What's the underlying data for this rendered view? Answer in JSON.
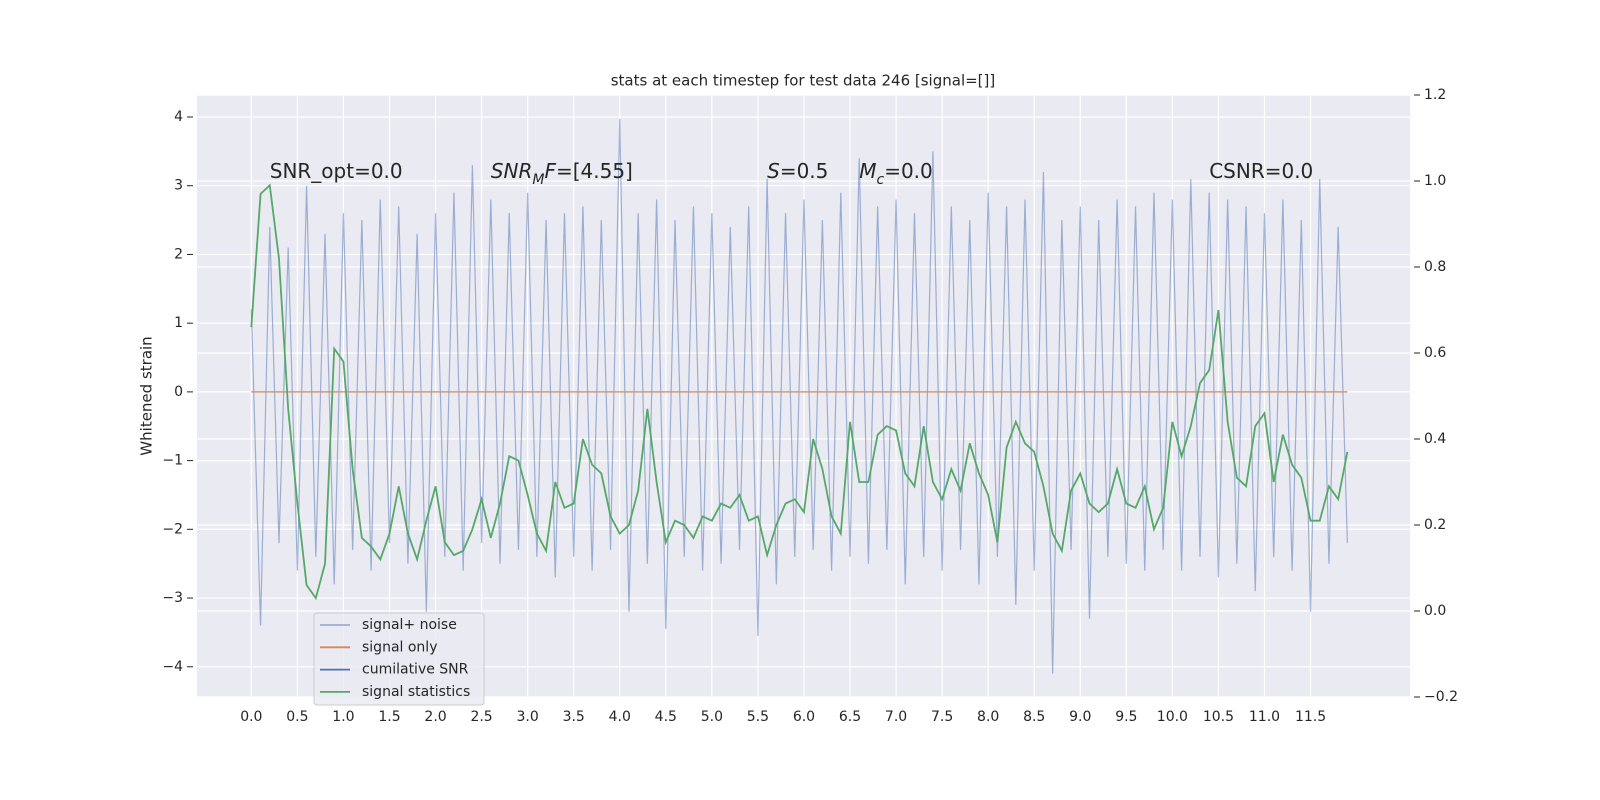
{
  "chart_data": {
    "type": "line",
    "title": "stats at each timestep for test data 246 [signal=[]]",
    "ylabel": "Whitened strain",
    "x": [
      0.0,
      0.1,
      0.2,
      0.3,
      0.4,
      0.5,
      0.6,
      0.7,
      0.8,
      0.9,
      1.0,
      1.1,
      1.2,
      1.3,
      1.4,
      1.5,
      1.6,
      1.7,
      1.8,
      1.9,
      2.0,
      2.1,
      2.2,
      2.3,
      2.4,
      2.5,
      2.6,
      2.7,
      2.8,
      2.9,
      3.0,
      3.1,
      3.2,
      3.3,
      3.4,
      3.5,
      3.6,
      3.7,
      3.8,
      3.9,
      4.0,
      4.1,
      4.2,
      4.3,
      4.4,
      4.5,
      4.6,
      4.7,
      4.8,
      4.9,
      5.0,
      5.1,
      5.2,
      5.3,
      5.4,
      5.5,
      5.6,
      5.7,
      5.8,
      5.9,
      6.0,
      6.1,
      6.2,
      6.3,
      6.4,
      6.5,
      6.6,
      6.7,
      6.8,
      6.9,
      7.0,
      7.1,
      7.2,
      7.3,
      7.4,
      7.5,
      7.6,
      7.7,
      7.8,
      7.9,
      8.0,
      8.1,
      8.2,
      8.3,
      8.4,
      8.5,
      8.6,
      8.7,
      8.8,
      8.9,
      9.0,
      9.1,
      9.2,
      9.3,
      9.4,
      9.5,
      9.6,
      9.7,
      9.8,
      9.9,
      10.0,
      10.1,
      10.2,
      10.3,
      10.4,
      10.5,
      10.6,
      10.7,
      10.8,
      10.9,
      11.0,
      11.1,
      11.2,
      11.3,
      11.4,
      11.5,
      11.6,
      11.7,
      11.8,
      11.9
    ],
    "series": [
      {
        "name": "signal+ noise",
        "color": "#4c72b0",
        "opacity": 0.5,
        "values": [
          1.2,
          -3.4,
          2.4,
          -2.2,
          2.1,
          -2.6,
          3.0,
          -2.4,
          2.3,
          -2.8,
          2.6,
          -2.3,
          2.5,
          -2.6,
          2.8,
          -2.2,
          2.7,
          -2.5,
          2.3,
          -3.2,
          2.6,
          -2.4,
          2.9,
          -2.6,
          3.3,
          -2.2,
          2.8,
          -2.5,
          2.6,
          -2.3,
          2.9,
          -2.4,
          2.5,
          -2.7,
          2.6,
          -2.4,
          2.7,
          -2.6,
          2.5,
          -2.3,
          3.97,
          -3.2,
          2.6,
          -2.5,
          2.8,
          -3.45,
          2.5,
          -2.4,
          2.7,
          -2.6,
          2.6,
          -2.5,
          2.4,
          -2.3,
          2.7,
          -3.55,
          3.1,
          -2.8,
          2.6,
          -2.4,
          2.8,
          -2.3,
          2.5,
          -2.6,
          2.9,
          -2.4,
          3.4,
          -2.5,
          2.7,
          -2.3,
          2.8,
          -2.8,
          2.6,
          -2.4,
          3.5,
          -2.6,
          2.7,
          -2.3,
          2.5,
          -2.8,
          2.9,
          -2.4,
          2.7,
          -3.1,
          2.8,
          -2.6,
          3.2,
          -4.1,
          2.5,
          -2.3,
          2.7,
          -3.3,
          2.5,
          -2.4,
          2.8,
          -2.5,
          2.7,
          -2.6,
          2.9,
          -2.3,
          2.8,
          -2.6,
          3.1,
          -2.4,
          2.9,
          -2.7,
          2.8,
          -2.5,
          2.7,
          -2.9,
          2.6,
          -2.4,
          2.8,
          -2.6,
          2.5,
          -3.2,
          3.1,
          -2.5,
          2.4,
          -2.2
        ]
      },
      {
        "name": "signal only",
        "color": "#dd8452",
        "x": [
          0.0,
          11.9
        ],
        "values": [
          0,
          0
        ]
      },
      {
        "name": "cumilative SNR",
        "color": "#4c72b0"
      },
      {
        "name": "signal statistics",
        "color": "#55a868",
        "axis": "y2",
        "values": [
          0.66,
          0.97,
          0.99,
          0.82,
          0.47,
          0.25,
          0.06,
          0.03,
          0.11,
          0.61,
          0.58,
          0.33,
          0.17,
          0.15,
          0.12,
          0.18,
          0.29,
          0.18,
          0.12,
          0.21,
          0.29,
          0.16,
          0.13,
          0.14,
          0.19,
          0.26,
          0.17,
          0.25,
          0.36,
          0.35,
          0.27,
          0.18,
          0.14,
          0.3,
          0.24,
          0.25,
          0.4,
          0.34,
          0.32,
          0.22,
          0.18,
          0.2,
          0.28,
          0.47,
          0.3,
          0.16,
          0.21,
          0.2,
          0.17,
          0.22,
          0.21,
          0.25,
          0.24,
          0.27,
          0.21,
          0.22,
          0.13,
          0.2,
          0.25,
          0.26,
          0.23,
          0.4,
          0.33,
          0.22,
          0.18,
          0.44,
          0.3,
          0.3,
          0.41,
          0.43,
          0.42,
          0.32,
          0.29,
          0.43,
          0.3,
          0.26,
          0.33,
          0.28,
          0.39,
          0.32,
          0.27,
          0.16,
          0.38,
          0.44,
          0.39,
          0.37,
          0.29,
          0.18,
          0.14,
          0.28,
          0.32,
          0.25,
          0.23,
          0.25,
          0.33,
          0.25,
          0.24,
          0.29,
          0.19,
          0.24,
          0.44,
          0.36,
          0.43,
          0.53,
          0.56,
          0.7,
          0.44,
          0.31,
          0.29,
          0.43,
          0.46,
          0.3,
          0.41,
          0.34,
          0.31,
          0.21,
          0.21,
          0.29,
          0.26,
          0.37
        ]
      }
    ],
    "xlim": [
      -0.59,
      12.58
    ],
    "ylim": [
      -4.44,
      4.32
    ],
    "y2lim": [
      -0.2,
      1.2
    ],
    "xticks": [
      {
        "value": 0,
        "label": "0.0"
      },
      0.5,
      {
        "value": 1,
        "label": "1.0"
      },
      1.5,
      {
        "value": 2,
        "label": "2.0"
      },
      2.5,
      {
        "value": 3,
        "label": "3.0"
      },
      3.5,
      {
        "value": 4,
        "label": "4.0"
      },
      4.5,
      {
        "value": 5,
        "label": "5.0"
      },
      5.5,
      {
        "value": 6,
        "label": "6.0"
      },
      6.5,
      {
        "value": 7,
        "label": "7.0"
      },
      7.5,
      {
        "value": 8,
        "label": "8.0"
      },
      8.5,
      {
        "value": 9,
        "label": "9.0"
      },
      9.5,
      {
        "value": 10,
        "label": "10.0"
      },
      10.5,
      {
        "value": 11,
        "label": "11.0"
      },
      11.5
    ],
    "yticks": [
      {
        "value": -4,
        "label": "−4"
      },
      {
        "value": -3,
        "label": "−3"
      },
      {
        "value": -2,
        "label": "−2"
      },
      {
        "value": -1,
        "label": "−1"
      },
      0,
      1,
      2,
      3,
      4
    ],
    "y2ticks": [
      {
        "value": -0.2,
        "label": "−0.2"
      },
      {
        "value": 0,
        "label": "0.0"
      },
      0.2,
      0.4,
      0.6,
      0.8,
      {
        "value": 1,
        "label": "1.0"
      },
      1.2
    ],
    "grid": true,
    "legend": "lower left",
    "annotations": [
      {
        "x": 0.2,
        "y": 3.2,
        "parts": [
          {
            "text": "SNR_opt=0.0"
          }
        ]
      },
      {
        "x": 2.6,
        "y": 3.2,
        "parts": [
          {
            "text": "SNR",
            "style": "italic"
          },
          {
            "text": "M",
            "style": "italic-sub"
          },
          {
            "text": "F",
            "style": "italic"
          },
          {
            "text": "=[4.55]"
          }
        ]
      },
      {
        "x": 5.6,
        "y": 3.2,
        "parts": [
          {
            "text": "S",
            "style": "italic"
          },
          {
            "text": "=0.5"
          }
        ]
      },
      {
        "x": 6.6,
        "y": 3.2,
        "parts": [
          {
            "text": "M",
            "style": "italic"
          },
          {
            "text": "c",
            "style": "italic-sub"
          },
          {
            "text": "=0.0"
          }
        ]
      },
      {
        "x": 10.4,
        "y": 3.2,
        "parts": [
          {
            "text": "CSNR=0.0"
          }
        ]
      }
    ]
  }
}
